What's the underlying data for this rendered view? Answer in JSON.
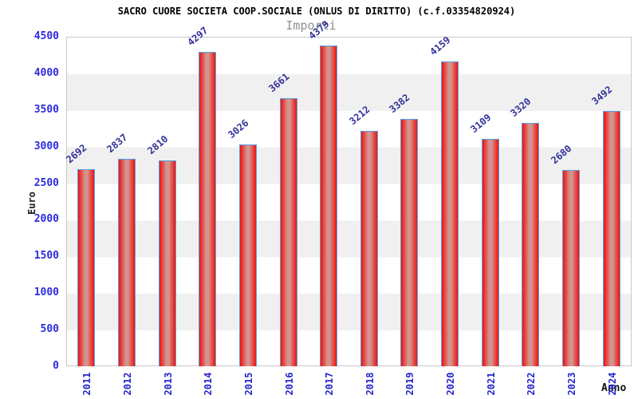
{
  "title": "SACRO CUORE SOCIETA COOP.SOCIALE (ONLUS DI DIRITTO) (c.f.03354820924)",
  "subtitle": "Importi",
  "axes": {
    "y_title": "Euro",
    "x_title": "Anno"
  },
  "chart_data": {
    "type": "bar",
    "title": "SACRO CUORE SOCIETA COOP.SOCIALE (ONLUS DI DIRITTO) (c.f.03354820924)",
    "subtitle": "Importi",
    "xlabel": "Anno",
    "ylabel": "Euro",
    "categories": [
      "2011",
      "2012",
      "2013",
      "2014",
      "2015",
      "2016",
      "2017",
      "2018",
      "2019",
      "2020",
      "2021",
      "2022",
      "2023",
      "2024"
    ],
    "values": [
      2692,
      2837,
      2810,
      4297,
      3026,
      3661,
      4379,
      3212,
      3382,
      4159,
      3109,
      3320,
      2680,
      3492
    ],
    "ylim": [
      0,
      4500
    ],
    "ytick_step": 500,
    "grid": "alternating-horizontal-bands",
    "legend_position": "none",
    "colors": {
      "bar_fill_edge": "#ec1414",
      "bar_fill_mid": "#c9989a",
      "bar_border": "#58a2e8",
      "value_label": "#32329b",
      "y_tick_label": "#2b2be0",
      "x_tick_label": "#2525cd",
      "band_gray": "#f0f0f0",
      "band_white": "#ffffff",
      "plot_border": "#c9c9c9",
      "subtitle_gray": "#8f8f8f",
      "title_black": "#000000"
    }
  }
}
